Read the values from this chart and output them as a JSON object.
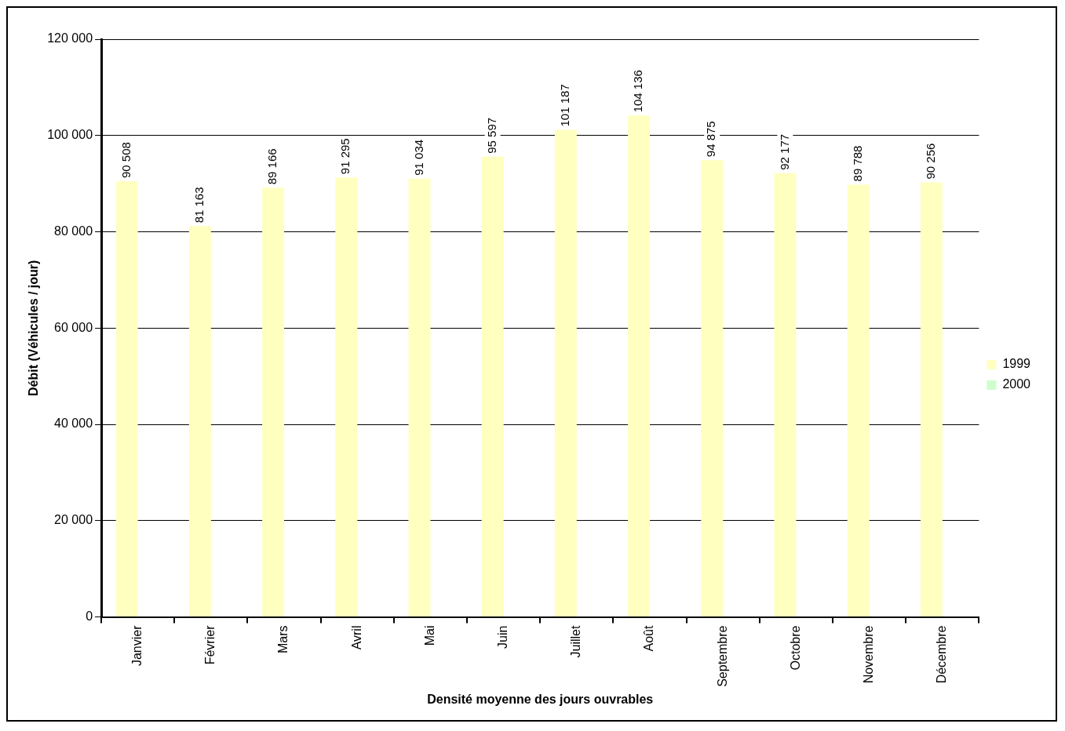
{
  "chart_data": {
    "type": "bar",
    "xlabel": "Densité moyenne des jours ouvrables",
    "ylabel": "Débit (Véhicules / jour)",
    "categories": [
      "Janvier",
      "Février",
      "Mars",
      "Avril",
      "Mai",
      "Juin",
      "Juillet",
      "Août",
      "Septembre",
      "Octobre",
      "Novembre",
      "Décembre"
    ],
    "series": [
      {
        "name": "1999",
        "color": "#ffffc0",
        "values": [
          90508,
          81163,
          89166,
          91295,
          91034,
          95597,
          101187,
          104136,
          94875,
          92177,
          89788,
          90256
        ],
        "value_labels": [
          "90 508",
          "81 163",
          "89 166",
          "91 295",
          "91 034",
          "95 597",
          "101 187",
          "104 136",
          "94 875",
          "92 177",
          "89 788",
          "90 256"
        ]
      },
      {
        "name": "2000",
        "color": "#ccffcc",
        "values": [
          null,
          null,
          null,
          null,
          null,
          null,
          null,
          null,
          null,
          null,
          null,
          null
        ]
      }
    ],
    "ylim": [
      0,
      120000
    ],
    "yticks": [
      {
        "value": 0,
        "label": "0"
      },
      {
        "value": 20000,
        "label": "20 000"
      },
      {
        "value": 40000,
        "label": "40 000"
      },
      {
        "value": 60000,
        "label": "60 000"
      },
      {
        "value": 80000,
        "label": "80 000"
      },
      {
        "value": 100000,
        "label": "100 000"
      },
      {
        "value": 120000,
        "label": "120 000"
      }
    ],
    "grid": "y",
    "legend": "right"
  }
}
